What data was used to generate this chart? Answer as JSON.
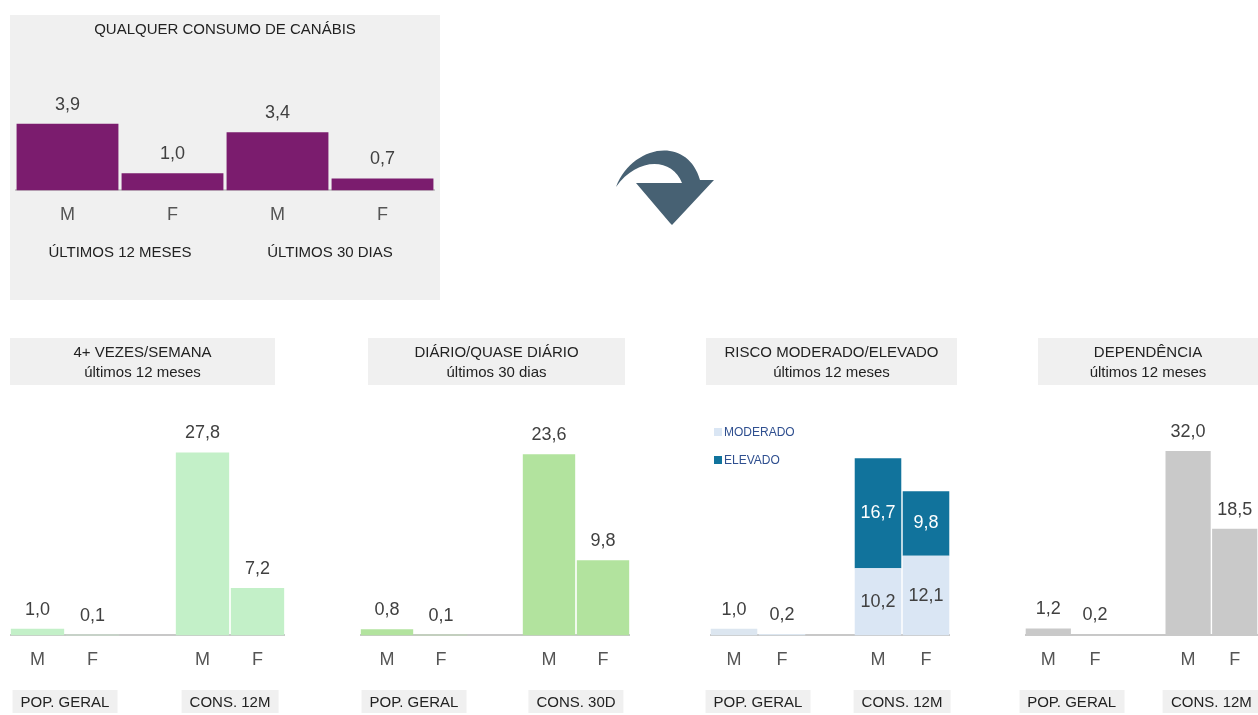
{
  "chart_data": [
    {
      "type": "bar",
      "title": "QUALQUER CONSUMO DE CANÁBIS",
      "categories": [
        "M",
        "F",
        "M",
        "F"
      ],
      "annotations": [
        "ÚLTIMOS 12 MESES",
        "ÚLTIMOS 30 DIAS"
      ],
      "tick_labels": "x",
      "series": [
        {
          "color": "#7b1c6e",
          "values": [
            3.9,
            1.0,
            3.4,
            0.7
          ],
          "value_labels": [
            "3,9",
            "1,0",
            "3,4",
            "0,7"
          ]
        }
      ]
    },
    {
      "type": "bar",
      "title": "4+ VEZES/SEMANA",
      "subtitle": "últimos 12 meses",
      "categories": [
        "M",
        "F",
        null,
        "M",
        "F"
      ],
      "annotations": [
        "POP. GERAL",
        "CONS. 12M"
      ],
      "tick_labels": "x",
      "series": [
        {
          "color": "#c3f0c8",
          "values": [
            1.0,
            0.1,
            null,
            27.8,
            7.2
          ],
          "value_labels": [
            "1,0",
            "0,1",
            null,
            "27,8",
            "7,2"
          ]
        }
      ]
    },
    {
      "type": "bar",
      "title": "DIÁRIO/QUASE DIÁRIO",
      "subtitle": "últimos 30 dias",
      "categories": [
        "M",
        "F",
        null,
        "M",
        "F"
      ],
      "annotations": [
        "POP. GERAL",
        "CONS. 30D"
      ],
      "tick_labels": "x",
      "series": [
        {
          "color": "#b2e39e",
          "values": [
            0.8,
            0.1,
            null,
            23.6,
            9.8
          ],
          "value_labels": [
            "0,8",
            "0,1",
            null,
            "23,6",
            "9,8"
          ]
        }
      ]
    },
    {
      "type": "bar",
      "title": "RISCO MODERADO/ELEVADO",
      "subtitle": "últimos 12 meses",
      "categories": [
        "M",
        "F",
        null,
        "M",
        "F"
      ],
      "annotations": [
        "POP. GERAL",
        "CONS. 12M"
      ],
      "tick_labels": "x",
      "stacked": true,
      "legend": "top left",
      "series": [
        {
          "color": "#dce6f0",
          "values": [
            1.0,
            0.2,
            null,
            null,
            null
          ],
          "value_labels": [
            "1,0",
            "0,2",
            null,
            null,
            null
          ]
        },
        {
          "name": "MODERADO",
          "color": "#dae6f4",
          "values": [
            null,
            null,
            null,
            10.2,
            12.1
          ],
          "value_labels": [
            null,
            null,
            null,
            "10,2",
            "12,1"
          ]
        },
        {
          "name": "ELEVADO",
          "color": "#11739c",
          "values": [
            null,
            null,
            null,
            16.7,
            9.8
          ],
          "value_labels": [
            null,
            null,
            null,
            "16,7",
            "9,8"
          ]
        }
      ]
    },
    {
      "type": "bar",
      "title": "DEPENDÊNCIA",
      "subtitle": "últimos 12 meses",
      "categories": [
        "M",
        "F",
        null,
        "M",
        "F"
      ],
      "annotations": [
        "POP. GERAL",
        "CONS. 12M"
      ],
      "tick_labels": "x",
      "series": [
        {
          "color": "#c9c9c9",
          "values": [
            1.2,
            0.2,
            null,
            32.0,
            18.5
          ],
          "value_labels": [
            "1,2",
            "0,2",
            null,
            "32,0",
            "18,5"
          ]
        }
      ]
    }
  ]
}
